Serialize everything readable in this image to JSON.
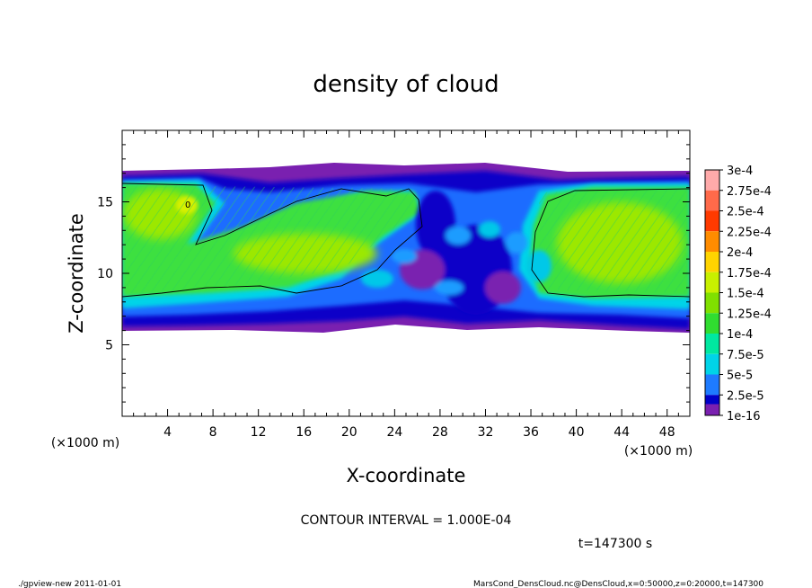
{
  "chart_data": {
    "type": "heatmap",
    "title": "density of cloud",
    "xlabel": "X-coordinate",
    "ylabel": "Z-coordinate",
    "x_unit": "(×1000 m)",
    "y_unit": "(×1000 m)",
    "xlim": [
      0,
      50
    ],
    "ylim": [
      0,
      20
    ],
    "x_ticks": [
      4,
      8,
      12,
      16,
      20,
      24,
      28,
      32,
      36,
      40,
      44,
      48
    ],
    "y_ticks": [
      5,
      10,
      15
    ],
    "contour_interval_text": "CONTOUR INTERVAL = 1.000E-04",
    "contour_label": "0",
    "time_text": "t=147300 s",
    "colorbar": {
      "labels": [
        "3e-4",
        "2.75e-4",
        "2.5e-4",
        "2.25e-4",
        "2e-4",
        "1.75e-4",
        "1.5e-4",
        "1.25e-4",
        "1e-4",
        "7.5e-5",
        "5e-5",
        "2.5e-5",
        "1e-16"
      ],
      "colors": [
        "#ffaaaa",
        "#ff6a4a",
        "#ff3a00",
        "#ff8c00",
        "#ffd400",
        "#c8f000",
        "#80e000",
        "#30dd30",
        "#00e8a0",
        "#00d4e8",
        "#1e7bff",
        "#0000c8",
        "#7a20b0"
      ]
    },
    "cloud_layer": {
      "base_z": 6.2,
      "top_z": 17.2,
      "high_density_left": [
        0,
        12.5,
        6.8,
        16.6
      ],
      "high_density_right": [
        36,
        50,
        8.3,
        16.5
      ],
      "turbulent_zone_x": [
        24,
        36
      ],
      "peak_value_approx": "2e-4"
    }
  },
  "footer": {
    "left": "./gpview-new  2011-01-01",
    "right": "MarsCond_DensCloud.nc@DensCloud,x=0:50000,z=0:20000,t=147300"
  }
}
